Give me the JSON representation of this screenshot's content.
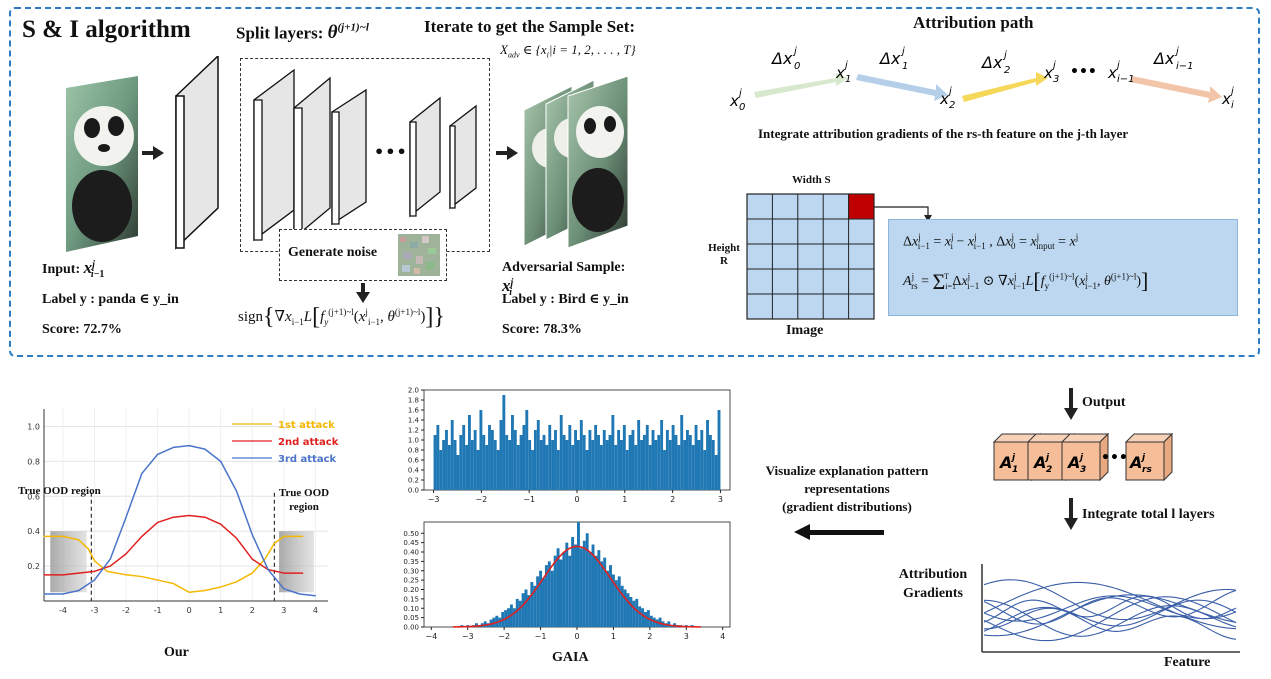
{
  "algorithm": {
    "title": "S & I algorithm",
    "split_layers": "Split layers:",
    "split_theta": "θ^{(j+1)~l}",
    "iterate": "Iterate to get the Sample Set:",
    "x_adv_set": "X_adv ∈ {x_i | i = 1, 2, ..., T}",
    "generate_noise": "Generate noise",
    "sign_formula": "sign{ ∇x_{i−1} L [ f_y^{(j+1)~l}(x_{i−1}^j, θ^{(j+1)~l}) ] }",
    "input_label": "Input:",
    "input_var": "x^j_{i−1}",
    "label_in": "Label y : panda ∈ y_in",
    "score_in": "Score: 72.7%",
    "adv_label": "Adversarial Sample:",
    "adv_var": "x^j_i",
    "label_adv": "Label y : Bird ∈ y_in",
    "score_adv": "Score: 78.3%",
    "ellipsis": "•••"
  },
  "attribution": {
    "title": "Attribution path",
    "nodes": [
      "x_0^j",
      "x_1^j",
      "x_2^j",
      "x_3^j",
      "x_{i−1}^j",
      "x_i^j"
    ],
    "deltas": [
      "Δx_0^j",
      "Δx_1^j",
      "Δx_2^j",
      "Δx_{i−1}^j"
    ],
    "arrow_colors": [
      "#d7e8cc",
      "#b5cfe8",
      "#f5d85a",
      "#f2c4a8"
    ],
    "dots": "•••",
    "caption": "Integrate attribution gradients of the rs-th feature on the j-th layer",
    "width_label": "Width S",
    "height_label": "Height R",
    "image_label": "Image",
    "highlight_color": "#c00000",
    "formula1": "Δx^j_{i−1} = x^j_i − x^j_{i−1} , Δx^j_0 = x^j_input = x^j",
    "formula2": "A^j_rs = Σ_{i=1}^{T} Δx^j_{i−1} ⊙ ∇x^j_{i−1} L [ f_y^{(j+1)~l}(x^j_{i−1}, θ^{(j+1)~l}) ]"
  },
  "right_flow": {
    "output": "Output",
    "cubes": [
      "A_1^j",
      "A_2^j",
      "A_3^j",
      "A_rs^j"
    ],
    "dots": "•••",
    "integrate": "Integrate total l layers",
    "y_label_1": "Attribution",
    "y_label_2": "Gradients",
    "x_label": "Feature"
  },
  "middle": {
    "visualize": "Visualize explanation pattern",
    "representations": "representations",
    "gradient": "(gradient distributions)"
  },
  "chart_data": [
    {
      "type": "line",
      "title": "",
      "xlabel": "Our",
      "ylabel": "",
      "xlim": [
        -4.6,
        4.4
      ],
      "ylim": [
        0,
        1.1
      ],
      "x_ticks": [
        -4,
        -3,
        -2,
        -1,
        0,
        1,
        2,
        3,
        4
      ],
      "y_ticks": [
        0.2,
        0.4,
        0.6,
        0.8,
        1.0
      ],
      "annotations": [
        "True OOD region",
        "True OOD region"
      ],
      "ood_lines": [
        -3.1,
        2.7
      ],
      "series": [
        {
          "name": "1st attack",
          "color": "#f5b800",
          "x": [
            -4.6,
            -4.0,
            -3.5,
            -3.2,
            -3.0,
            -2.6,
            -2.0,
            -1.5,
            -1.0,
            -0.5,
            0.0,
            0.5,
            1.0,
            1.5,
            2.0,
            2.4,
            2.7,
            3.0,
            3.3,
            3.6
          ],
          "values": [
            0.37,
            0.37,
            0.35,
            0.3,
            0.23,
            0.17,
            0.15,
            0.14,
            0.12,
            0.1,
            0.05,
            0.06,
            0.08,
            0.11,
            0.16,
            0.24,
            0.33,
            0.37,
            0.37,
            0.37
          ]
        },
        {
          "name": "2nd attack",
          "color": "#e02020",
          "x": [
            -4.6,
            -4.0,
            -3.5,
            -3.0,
            -2.5,
            -2.0,
            -1.5,
            -1.0,
            -0.5,
            0.0,
            0.5,
            1.0,
            1.5,
            2.0,
            2.5,
            3.0,
            3.6
          ],
          "values": [
            0.15,
            0.15,
            0.16,
            0.17,
            0.2,
            0.27,
            0.37,
            0.45,
            0.48,
            0.49,
            0.48,
            0.44,
            0.36,
            0.24,
            0.18,
            0.16,
            0.16
          ]
        },
        {
          "name": "3rd attack",
          "color": "#4a74c9",
          "x": [
            -4.6,
            -4.0,
            -3.5,
            -3.0,
            -2.5,
            -2.0,
            -1.5,
            -1.0,
            -0.5,
            0.0,
            0.5,
            1.0,
            1.5,
            2.0,
            2.5,
            3.0,
            3.5,
            4.0
          ],
          "values": [
            0.04,
            0.04,
            0.06,
            0.12,
            0.24,
            0.48,
            0.73,
            0.84,
            0.88,
            0.89,
            0.87,
            0.8,
            0.63,
            0.38,
            0.18,
            0.07,
            0.04,
            0.03
          ]
        }
      ]
    },
    {
      "type": "bar",
      "title": "",
      "xlabel": "",
      "ylabel": "",
      "xlim": [
        -3.2,
        3.2
      ],
      "ylim": [
        0,
        2.0
      ],
      "x_ticks": [
        -3,
        -2,
        -1,
        0,
        1,
        2,
        3
      ],
      "y_ticks": [
        0.0,
        0.2,
        0.4,
        0.6,
        0.8,
        1.0,
        1.2,
        1.4,
        1.6,
        1.8,
        2.0
      ],
      "color": "#1f77b4",
      "bin_start": -3.0,
      "bin_width": 0.06,
      "values": [
        1.1,
        1.3,
        0.8,
        1.0,
        1.2,
        0.9,
        1.4,
        1.0,
        0.7,
        1.1,
        1.3,
        0.9,
        1.5,
        1.0,
        1.2,
        0.8,
        1.6,
        1.1,
        0.9,
        1.3,
        1.2,
        1.0,
        0.8,
        1.4,
        1.9,
        1.1,
        1.0,
        1.5,
        1.2,
        0.9,
        1.1,
        1.3,
        1.6,
        1.0,
        0.8,
        1.2,
        1.4,
        1.0,
        1.1,
        0.9,
        1.3,
        1.0,
        1.2,
        0.8,
        1.5,
        1.1,
        1.0,
        1.3,
        0.9,
        1.2,
        1.0,
        1.4,
        1.1,
        0.8,
        1.2,
        1.0,
        1.3,
        1.1,
        0.9,
        1.2,
        1.0,
        1.1,
        1.5,
        0.9,
        1.2,
        1.0,
        1.3,
        0.8,
        1.1,
        1.2,
        0.9,
        1.4,
        1.0,
        1.1,
        1.3,
        0.9,
        1.2,
        1.0,
        1.1,
        1.4,
        0.8,
        1.2,
        1.0,
        1.3,
        1.1,
        0.9,
        1.5,
        1.0,
        1.2,
        1.1,
        0.9,
        1.3,
        1.0,
        1.2,
        0.8,
        1.4,
        1.1,
        1.0,
        0.7,
        1.6
      ]
    },
    {
      "type": "bar",
      "title": "",
      "xlabel": "GAIA",
      "ylabel": "",
      "xlim": [
        -4.2,
        4.2
      ],
      "ylim": [
        0,
        0.56
      ],
      "x_ticks": [
        -4,
        -3,
        -2,
        -1,
        0,
        1,
        2,
        3,
        4
      ],
      "y_ticks": [
        0.0,
        0.05,
        0.1,
        0.15,
        0.2,
        0.25,
        0.3,
        0.35,
        0.4,
        0.45,
        0.5
      ],
      "color": "#1f77b4",
      "curve_color": "#e02020",
      "curve": {
        "mean": 0.0,
        "amplitude": 0.43,
        "sigma": 0.92
      },
      "bin_start": -3.2,
      "bin_width": 0.08,
      "values": [
        0.01,
        0.0,
        0.01,
        0.0,
        0.01,
        0.02,
        0.01,
        0.02,
        0.03,
        0.02,
        0.04,
        0.05,
        0.06,
        0.05,
        0.08,
        0.09,
        0.1,
        0.12,
        0.1,
        0.15,
        0.14,
        0.18,
        0.2,
        0.17,
        0.24,
        0.22,
        0.27,
        0.3,
        0.26,
        0.33,
        0.35,
        0.3,
        0.38,
        0.42,
        0.36,
        0.4,
        0.45,
        0.38,
        0.48,
        0.44,
        0.56,
        0.42,
        0.46,
        0.5,
        0.4,
        0.44,
        0.38,
        0.41,
        0.35,
        0.37,
        0.3,
        0.33,
        0.28,
        0.25,
        0.27,
        0.22,
        0.2,
        0.18,
        0.16,
        0.14,
        0.15,
        0.11,
        0.1,
        0.08,
        0.09,
        0.06,
        0.05,
        0.04,
        0.05,
        0.03,
        0.02,
        0.03,
        0.01,
        0.02,
        0.01,
        0.01,
        0.0,
        0.01,
        0.0,
        0.01
      ]
    }
  ]
}
